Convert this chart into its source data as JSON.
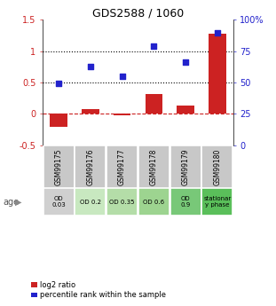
{
  "title": "GDS2588 / 1060",
  "samples": [
    "GSM99175",
    "GSM99176",
    "GSM99177",
    "GSM99178",
    "GSM99179",
    "GSM99180"
  ],
  "log2_ratio": [
    -0.2,
    0.08,
    -0.02,
    0.32,
    0.13,
    1.28
  ],
  "percentile_rank": [
    49,
    63,
    55,
    79,
    66,
    90
  ],
  "left_ylim": [
    -0.5,
    1.5
  ],
  "right_ylim": [
    0,
    100
  ],
  "left_yticks": [
    -0.5,
    0.0,
    0.5,
    1.0,
    1.5
  ],
  "right_yticks": [
    0,
    25,
    50,
    75,
    100
  ],
  "hlines_dotted": [
    0.5,
    1.0
  ],
  "bar_color": "#cc2222",
  "dot_color": "#2222cc",
  "bar_width": 0.55,
  "age_labels": [
    "OD\n0.03",
    "OD 0.2",
    "OD 0.35",
    "OD 0.6",
    "OD\n0.9",
    "stationar\ny phase"
  ],
  "age_bg_colors": [
    "#d0d0d0",
    "#c8e8c0",
    "#b4dda8",
    "#9dd490",
    "#78c878",
    "#5abf5a"
  ],
  "sample_bg_color": "#c8c8c8",
  "legend_bar_label": "log2 ratio",
  "legend_dot_label": "percentile rank within the sample"
}
